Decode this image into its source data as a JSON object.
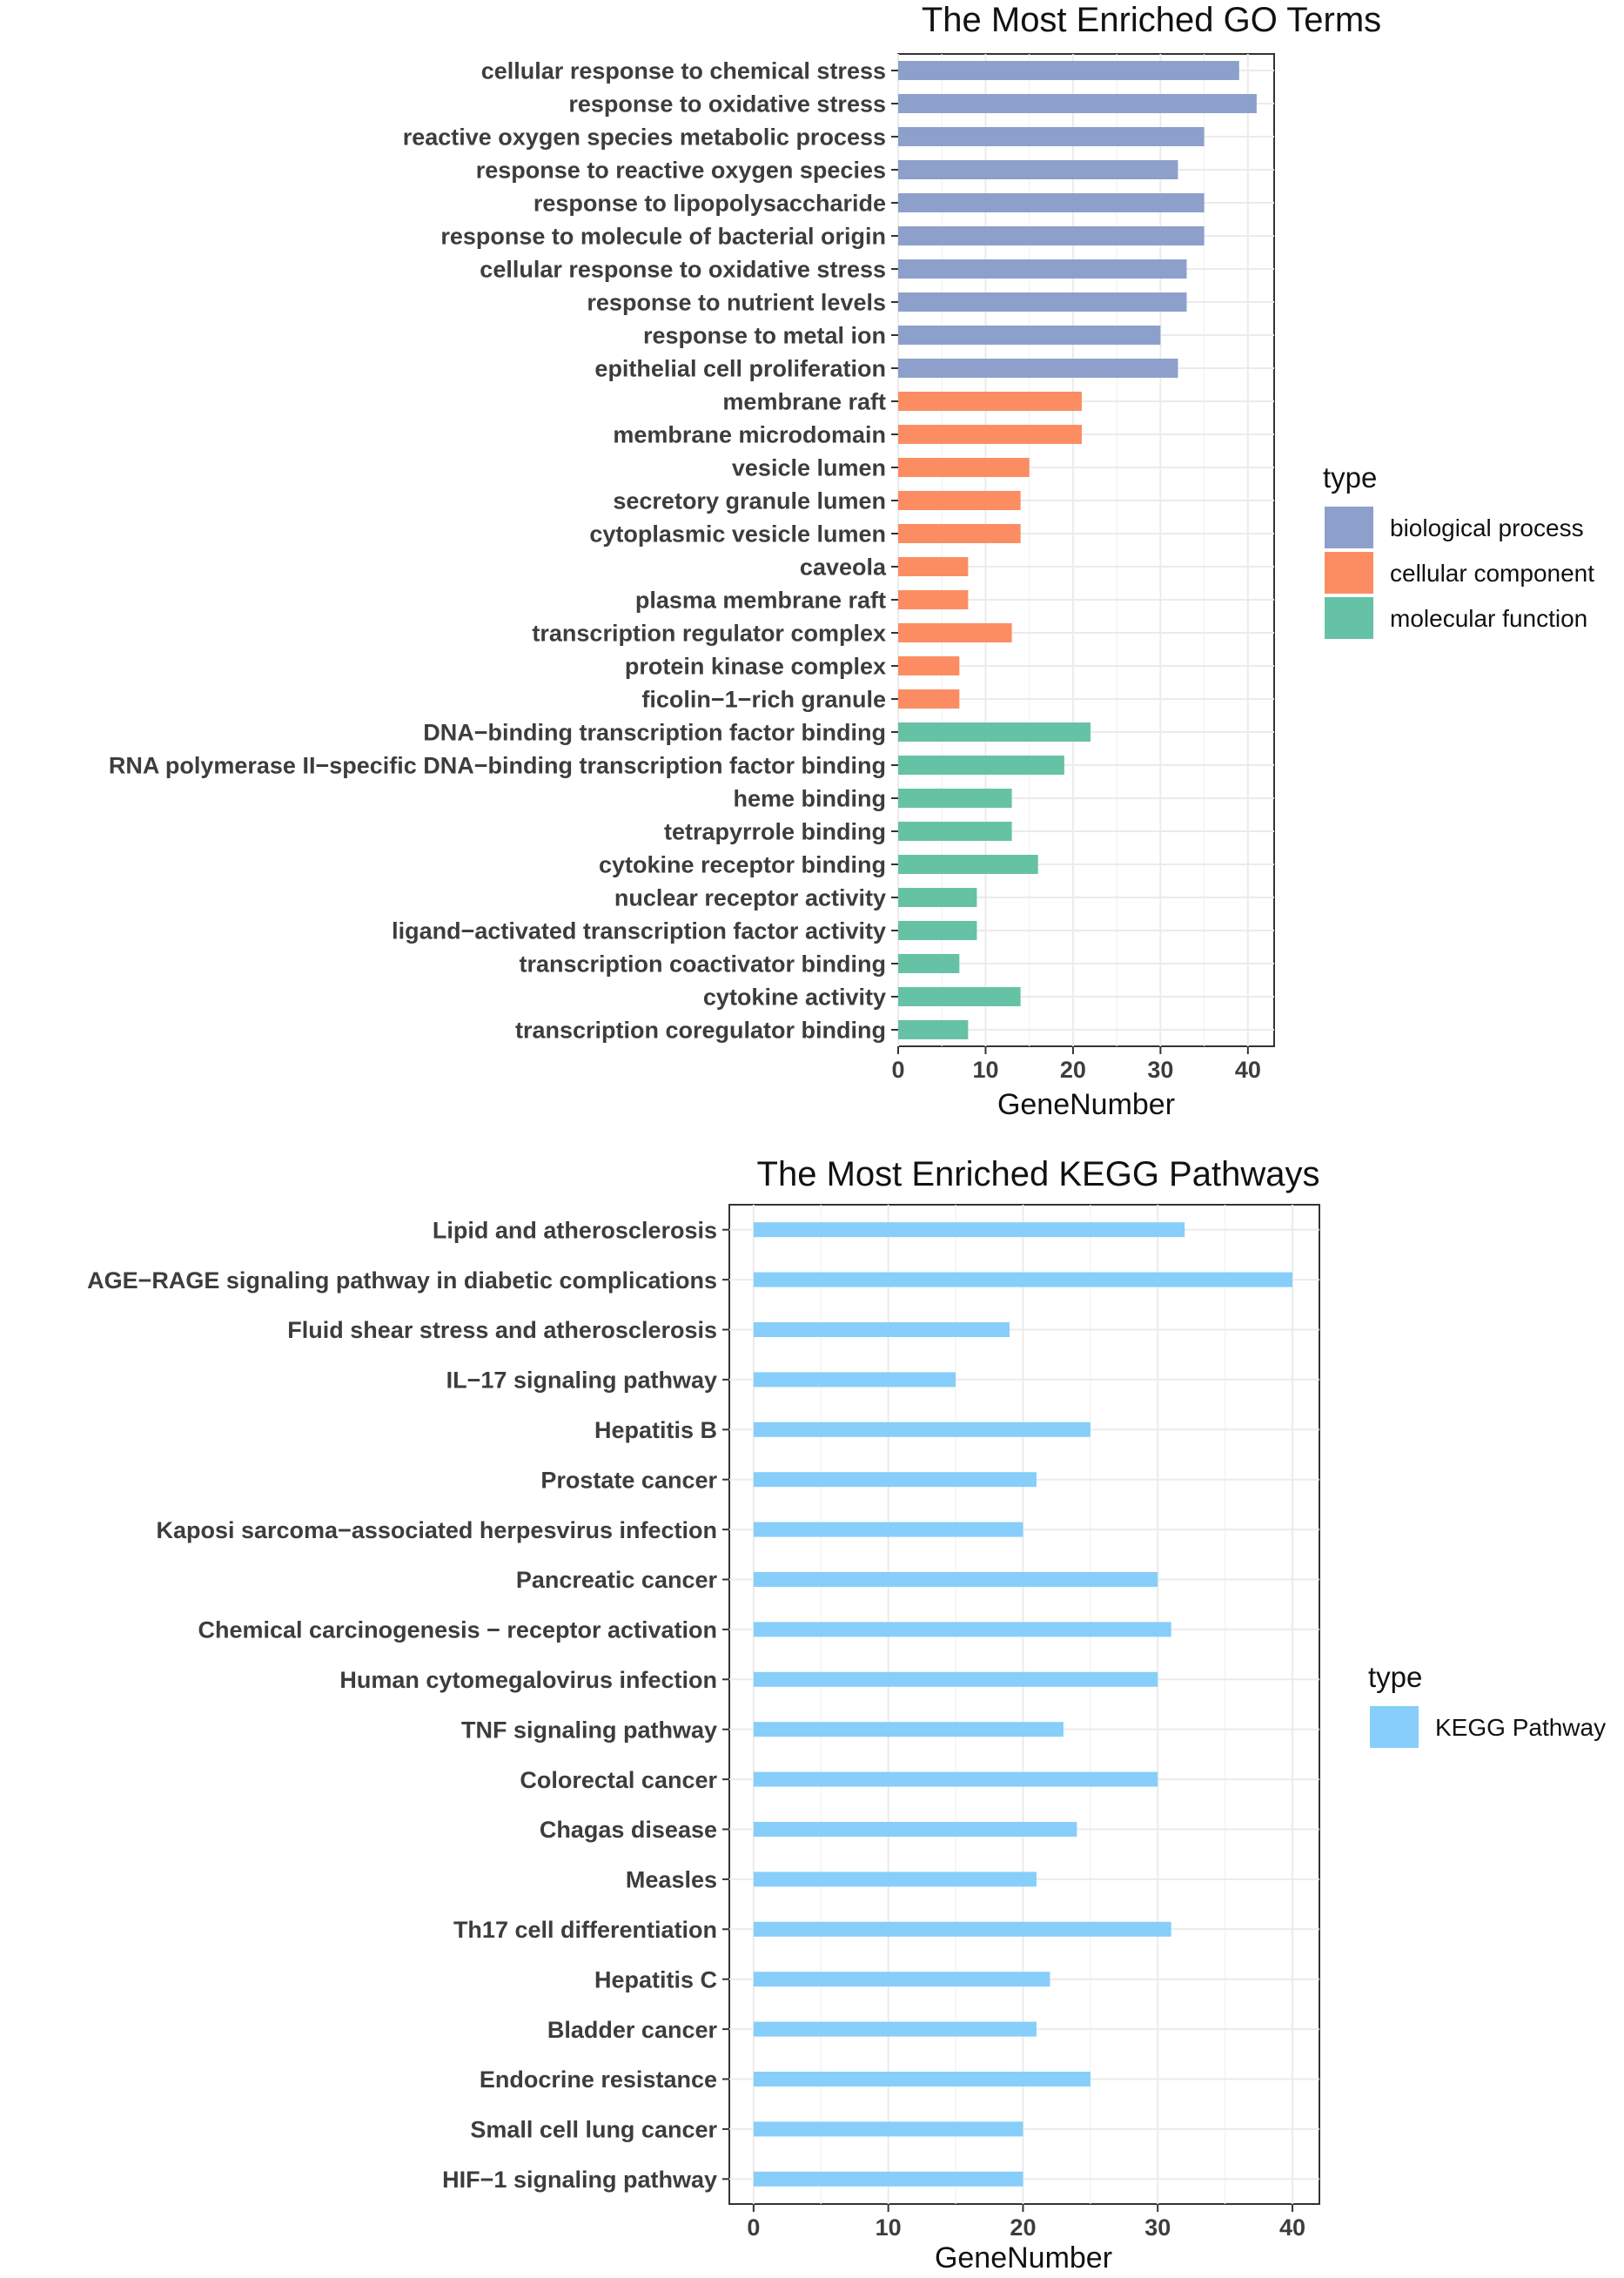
{
  "chart_data": [
    {
      "type": "bar",
      "orientation": "horizontal",
      "title": "The Most Enriched GO Terms",
      "xlabel": "GeneNumber",
      "ylabel": "",
      "xlim": [
        0,
        43
      ],
      "xticks": [
        0,
        10,
        20,
        30,
        40
      ],
      "grid": true,
      "legend": {
        "title": "type",
        "placement": "right",
        "entries": [
          {
            "name": "biological process",
            "color": "#8DA0CB"
          },
          {
            "name": "cellular component",
            "color": "#FC8D62"
          },
          {
            "name": "molecular function",
            "color": "#66C2A5"
          }
        ]
      },
      "categories": [
        "cellular response to chemical stress",
        "response to oxidative stress",
        "reactive oxygen species metabolic process",
        "response to reactive oxygen species",
        "response to lipopolysaccharide",
        "response to molecule of bacterial origin",
        "cellular response to oxidative stress",
        "response to nutrient levels",
        "response to metal ion",
        "epithelial cell proliferation",
        "membrane raft",
        "membrane microdomain",
        "vesicle lumen",
        "secretory granule lumen",
        "cytoplasmic vesicle lumen",
        "caveola",
        "plasma membrane raft",
        "transcription regulator complex",
        "protein kinase complex",
        "ficolin−1−rich granule",
        "DNA−binding transcription factor binding",
        "RNA polymerase II−specific DNA−binding transcription factor binding",
        "heme binding",
        "tetrapyrrole binding",
        "cytokine receptor binding",
        "nuclear receptor activity",
        "ligand−activated transcription factor activity",
        "transcription coactivator binding",
        "cytokine activity",
        "transcription coregulator binding"
      ],
      "values": [
        39,
        41,
        35,
        32,
        35,
        35,
        33,
        33,
        30,
        32,
        21,
        21,
        15,
        14,
        14,
        8,
        8,
        13,
        7,
        7,
        22,
        19,
        13,
        13,
        16,
        9,
        9,
        7,
        14,
        8
      ],
      "types": [
        "biological process",
        "biological process",
        "biological process",
        "biological process",
        "biological process",
        "biological process",
        "biological process",
        "biological process",
        "biological process",
        "biological process",
        "cellular component",
        "cellular component",
        "cellular component",
        "cellular component",
        "cellular component",
        "cellular component",
        "cellular component",
        "cellular component",
        "cellular component",
        "cellular component",
        "molecular function",
        "molecular function",
        "molecular function",
        "molecular function",
        "molecular function",
        "molecular function",
        "molecular function",
        "molecular function",
        "molecular function",
        "molecular function"
      ]
    },
    {
      "type": "bar",
      "orientation": "horizontal",
      "title": "The Most Enriched KEGG Pathways",
      "xlabel": "GeneNumber",
      "ylabel": "",
      "xlim": [
        -1.8,
        42
      ],
      "xticks": [
        0,
        10,
        20,
        30,
        40
      ],
      "grid": true,
      "legend": {
        "title": "type",
        "placement": "right",
        "entries": [
          {
            "name": "KEGG Pathway",
            "color": "#87CEFA"
          }
        ]
      },
      "categories": [
        "Lipid and atherosclerosis",
        "AGE−RAGE signaling pathway in diabetic complications",
        "Fluid shear stress and atherosclerosis",
        "IL−17 signaling pathway",
        "Hepatitis B",
        "Prostate cancer",
        "Kaposi sarcoma−associated herpesvirus infection",
        "Pancreatic cancer",
        "Chemical carcinogenesis − receptor activation",
        "Human cytomegalovirus infection",
        "TNF signaling pathway",
        "Colorectal cancer",
        "Chagas disease",
        "Measles",
        "Th17 cell differentiation",
        "Hepatitis C",
        "Bladder cancer",
        "Endocrine resistance",
        "Small cell lung cancer",
        "HIF−1 signaling pathway"
      ],
      "values": [
        32,
        40,
        19,
        15,
        25,
        21,
        20,
        30,
        31,
        30,
        23,
        30,
        24,
        21,
        31,
        22,
        21,
        25,
        20,
        20
      ]
    }
  ]
}
